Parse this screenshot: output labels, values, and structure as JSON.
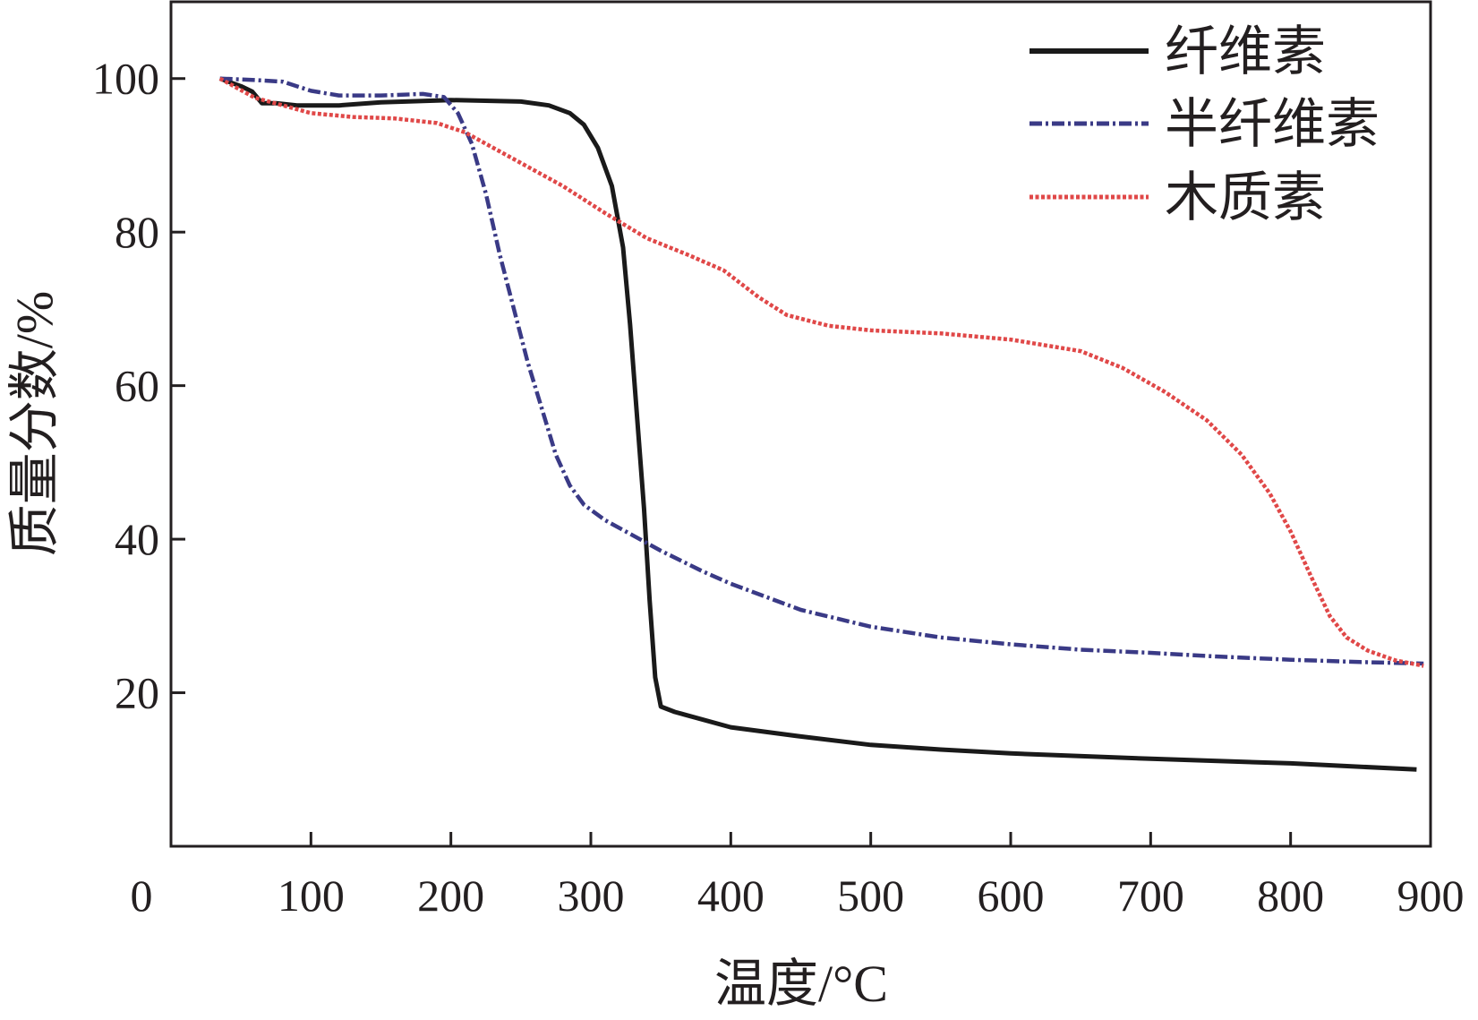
{
  "chart_data": {
    "type": "line",
    "xlabel": "温度/°C",
    "ylabel": "质量分数/%",
    "x_origin_label": "0",
    "xlim": [
      0,
      900
    ],
    "ylim": [
      0,
      110
    ],
    "xticks": [
      100,
      200,
      300,
      400,
      500,
      600,
      700,
      800,
      900
    ],
    "yticks": [
      20,
      40,
      60,
      80,
      100
    ],
    "grid": false,
    "legend_position": "top-right",
    "series": [
      {
        "name": "纤维素",
        "color": "#1a1a1a",
        "style": "solid",
        "points": [
          [
            35,
            100
          ],
          [
            50,
            99
          ],
          [
            58,
            98.3
          ],
          [
            65,
            96.8
          ],
          [
            75,
            96.8
          ],
          [
            90,
            96.5
          ],
          [
            120,
            96.5
          ],
          [
            150,
            96.9
          ],
          [
            200,
            97.2
          ],
          [
            250,
            97
          ],
          [
            270,
            96.5
          ],
          [
            285,
            95.5
          ],
          [
            295,
            94
          ],
          [
            305,
            91
          ],
          [
            315,
            86
          ],
          [
            323,
            78
          ],
          [
            328,
            68
          ],
          [
            333,
            56
          ],
          [
            338,
            44
          ],
          [
            342,
            32
          ],
          [
            346,
            22
          ],
          [
            350,
            18.2
          ],
          [
            360,
            17.5
          ],
          [
            400,
            15.5
          ],
          [
            450,
            14.3
          ],
          [
            500,
            13.2
          ],
          [
            550,
            12.6
          ],
          [
            600,
            12.1
          ],
          [
            700,
            11.4
          ],
          [
            800,
            10.8
          ],
          [
            890,
            10
          ]
        ]
      },
      {
        "name": "半纤维素",
        "color": "#3a3a86",
        "style": "dashdot",
        "points": [
          [
            35,
            100
          ],
          [
            60,
            99.8
          ],
          [
            80,
            99.6
          ],
          [
            100,
            98.4
          ],
          [
            120,
            97.8
          ],
          [
            150,
            97.8
          ],
          [
            180,
            98
          ],
          [
            195,
            97.6
          ],
          [
            205,
            95.5
          ],
          [
            215,
            91.5
          ],
          [
            225,
            85
          ],
          [
            235,
            77
          ],
          [
            245,
            70
          ],
          [
            255,
            63
          ],
          [
            265,
            57
          ],
          [
            275,
            51
          ],
          [
            285,
            47
          ],
          [
            295,
            44.5
          ],
          [
            310,
            42.5
          ],
          [
            330,
            40.5
          ],
          [
            350,
            38.5
          ],
          [
            380,
            35.8
          ],
          [
            400,
            34.2
          ],
          [
            450,
            30.8
          ],
          [
            500,
            28.6
          ],
          [
            550,
            27.2
          ],
          [
            600,
            26.3
          ],
          [
            650,
            25.6
          ],
          [
            700,
            25.2
          ],
          [
            750,
            24.7
          ],
          [
            800,
            24.3
          ],
          [
            850,
            24
          ],
          [
            895,
            23.8
          ]
        ]
      },
      {
        "name": "木质素",
        "color": "#e04848",
        "style": "dotted",
        "points": [
          [
            35,
            100
          ],
          [
            60,
            97.5
          ],
          [
            80,
            96.5
          ],
          [
            100,
            95.5
          ],
          [
            130,
            95
          ],
          [
            160,
            94.8
          ],
          [
            190,
            94.2
          ],
          [
            210,
            93
          ],
          [
            250,
            89
          ],
          [
            280,
            86
          ],
          [
            310,
            82.5
          ],
          [
            340,
            79.2
          ],
          [
            370,
            77
          ],
          [
            395,
            75
          ],
          [
            420,
            71.5
          ],
          [
            440,
            69.2
          ],
          [
            470,
            67.8
          ],
          [
            500,
            67.2
          ],
          [
            550,
            66.8
          ],
          [
            600,
            66
          ],
          [
            650,
            64.5
          ],
          [
            680,
            62.3
          ],
          [
            710,
            59.2
          ],
          [
            740,
            55.5
          ],
          [
            765,
            51
          ],
          [
            785,
            46
          ],
          [
            800,
            41
          ],
          [
            815,
            35
          ],
          [
            828,
            30
          ],
          [
            840,
            27.2
          ],
          [
            855,
            25.5
          ],
          [
            875,
            24.2
          ],
          [
            895,
            23.5
          ]
        ]
      }
    ]
  }
}
